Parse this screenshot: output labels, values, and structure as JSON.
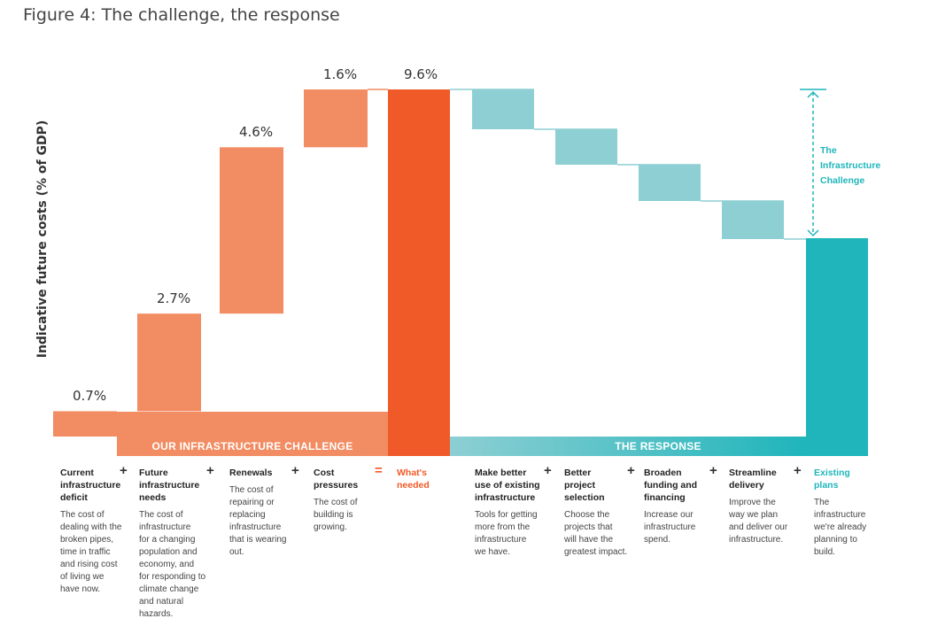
{
  "figure": {
    "title": "Figure 4: The challenge, the response",
    "ylabel": "Indicative future costs (% of GDP)"
  },
  "chart_data": {
    "type": "bar",
    "subtype": "waterfall",
    "ylabel": "Indicative future costs (% of GDP)",
    "challenge": {
      "categories": [
        "Current infrastructure deficit",
        "Future infrastructure needs",
        "Renewals",
        "Cost pressures",
        "What's needed"
      ],
      "values": [
        0.7,
        2.7,
        4.6,
        1.6,
        9.6
      ],
      "labels": [
        "0.7%",
        "2.7%",
        "4.6%",
        "1.6%",
        "9.6%"
      ]
    },
    "response": {
      "categories": [
        "Make better use of existing infrastructure",
        "Better project selection",
        "Broaden funding and financing",
        "Streamline delivery",
        "Existing plans"
      ]
    },
    "colors": {
      "challenge": "#f28c62",
      "total": "#f05a28",
      "response": "#8dcfd3",
      "existing": "#1fb5bb"
    },
    "banners": {
      "challenge": "OUR INFRASTRUCTURE CHALLENGE",
      "response": "THE RESPONSE"
    },
    "annotation": {
      "line1": "The",
      "line2": "Infrastructure",
      "line3": "Challenge"
    }
  },
  "columns": [
    {
      "head": [
        "Current",
        "infrastructure",
        "deficit"
      ],
      "desc": [
        "The cost of",
        "dealing with the",
        "broken pipes,",
        "time in traffic",
        "and rising cost",
        "of living we",
        "have now."
      ]
    },
    {
      "head": [
        "Future",
        "infrastructure",
        "needs"
      ],
      "desc": [
        "The cost of",
        "infrastructure",
        "for a changing",
        "population and",
        "economy, and",
        "for responding to",
        "climate change",
        "and natural",
        "hazards."
      ]
    },
    {
      "head": [
        "Renewals"
      ],
      "desc": [
        "The cost of",
        "repairing or",
        "replacing",
        "infrastructure",
        "that is wearing",
        "out."
      ]
    },
    {
      "head": [
        "Cost",
        "pressures"
      ],
      "desc": [
        "The cost of",
        "building is",
        "growing."
      ]
    },
    {
      "head": [
        "What's",
        "needed"
      ],
      "desc": []
    },
    {
      "head": [
        "Make better",
        "use of existing",
        "infrastructure"
      ],
      "desc": [
        "Tools for getting",
        "more from the",
        "infrastructure",
        "we have."
      ]
    },
    {
      "head": [
        "Better",
        "project",
        "selection"
      ],
      "desc": [
        "Choose the",
        "projects that",
        "will have the",
        "greatest impact."
      ]
    },
    {
      "head": [
        "Broaden",
        "funding and",
        "financing"
      ],
      "desc": [
        "Increase our",
        "infrastructure",
        "spend."
      ]
    },
    {
      "head": [
        "Streamline",
        "delivery"
      ],
      "desc": [
        "Improve the",
        "way we plan",
        "and deliver our",
        "infrastructure."
      ]
    },
    {
      "head": [
        "Existing",
        "plans"
      ],
      "desc": [
        "The",
        "infrastructure",
        "we're already",
        "planning to",
        "build."
      ]
    }
  ],
  "operators": {
    "plus": "+",
    "equals": "="
  }
}
